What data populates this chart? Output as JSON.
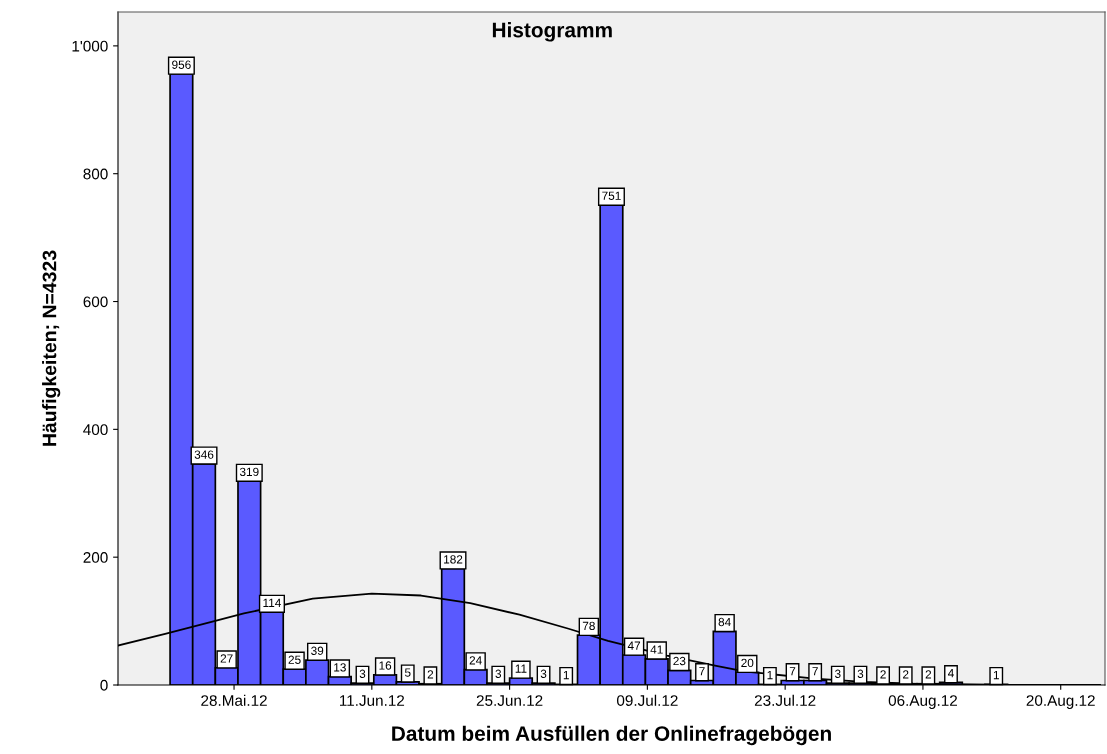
{
  "chart_data": {
    "type": "histogram",
    "title": "Histogramm",
    "xlabel": "Datum beim Ausfüllen der Onlinefragebögen",
    "ylabel": "Häufigkeiten; N=4323",
    "bins": [
      "2012-05-21T12:00",
      "2012-05-23T19:12",
      "2012-05-26T02:24",
      "2012-05-28T09:36",
      "2012-05-30T16:48",
      "2012-06-02T00:00",
      "2012-06-04T07:12",
      "2012-06-06T14:24",
      "2012-06-08T21:36",
      "2012-06-11T04:48",
      "2012-06-13T12:00",
      "2012-06-15T19:12",
      "2012-06-18T02:24",
      "2012-06-20T09:36",
      "2012-06-22T16:48",
      "2012-06-25T00:00",
      "2012-06-27T07:12",
      "2012-06-29T14:24",
      "2012-07-01T21:36",
      "2012-07-04T04:48",
      "2012-07-06T12:00",
      "2012-07-08T19:12",
      "2012-07-11T02:24",
      "2012-07-13T09:36",
      "2012-07-15T16:48",
      "2012-07-18T00:00",
      "2012-07-20T07:12",
      "2012-07-22T14:24",
      "2012-07-24T21:36",
      "2012-07-27T04:48",
      "2012-07-29T12:00",
      "2012-07-31T19:12",
      "2012-08-03T02:24",
      "2012-08-05T09:36",
      "2012-08-07T16:48",
      "2012-08-10T00:00",
      "2012-08-12T07:12",
      "2012-08-14T14:24"
    ],
    "series": [
      {
        "color": "#5a5aff",
        "values": [
          956,
          346,
          27,
          319,
          114,
          25,
          39,
          13,
          3,
          16,
          5,
          2,
          182,
          24,
          3,
          11,
          3,
          1,
          78,
          751,
          47,
          41,
          23,
          7,
          84,
          20,
          1,
          7,
          7,
          3,
          3,
          2,
          2,
          2,
          4,
          null,
          1
        ],
        "value_labels": [
          "956",
          "346",
          "27",
          "319",
          "114",
          "25",
          "39",
          "13",
          "3",
          "16",
          "5",
          "2",
          "182",
          "24",
          "3",
          "11",
          "3",
          "1",
          "78",
          "751",
          "47",
          "41",
          "23",
          "7",
          "84",
          "20",
          "1",
          "7",
          "7",
          "3",
          "3",
          "2",
          "2",
          "2",
          "4",
          null,
          "1"
        ]
      },
      {
        "type": "line",
        "color": "#000000",
        "x": [
          "2012-05-16T06:00",
          "2012-05-21",
          "2012-05-26",
          "2012-05-29",
          "2012-06-05",
          "2012-06-11",
          "2012-06-16",
          "2012-06-21",
          "2012-06-26",
          "2012-07-01",
          "2012-07-05",
          "2012-07-11",
          "2012-07-16",
          "2012-07-19",
          "2012-07-26",
          "2012-07-31",
          "2012-08-05",
          "2012-08-15",
          "2012-08-24"
        ],
        "values": [
          62,
          80,
          100,
          112,
          135,
          143,
          140,
          128,
          110,
          88,
          69,
          46,
          30,
          21,
          10,
          5,
          2,
          0,
          0
        ]
      }
    ],
    "xlim": [
      "2012-05-16T05:00",
      "2012-08-24T12:00"
    ],
    "xticks": [
      {
        "value": "2012-05-28",
        "label": "28.Mai.12"
      },
      {
        "value": "2012-06-11",
        "label": "11.Jun.12"
      },
      {
        "value": "2012-06-25",
        "label": "25.Jun.12"
      },
      {
        "value": "2012-07-09",
        "label": "09.Jul.12"
      },
      {
        "value": "2012-07-23",
        "label": "23.Jul.12"
      },
      {
        "value": "2012-08-06",
        "label": "06.Aug.12"
      },
      {
        "value": "2012-08-20",
        "label": "20.Aug.12"
      }
    ],
    "ylim": [
      0,
      1053
    ],
    "yticks": [
      0,
      200,
      400,
      600,
      800,
      {
        "value": 1000,
        "label": "1'000"
      }
    ],
    "grid": false
  }
}
